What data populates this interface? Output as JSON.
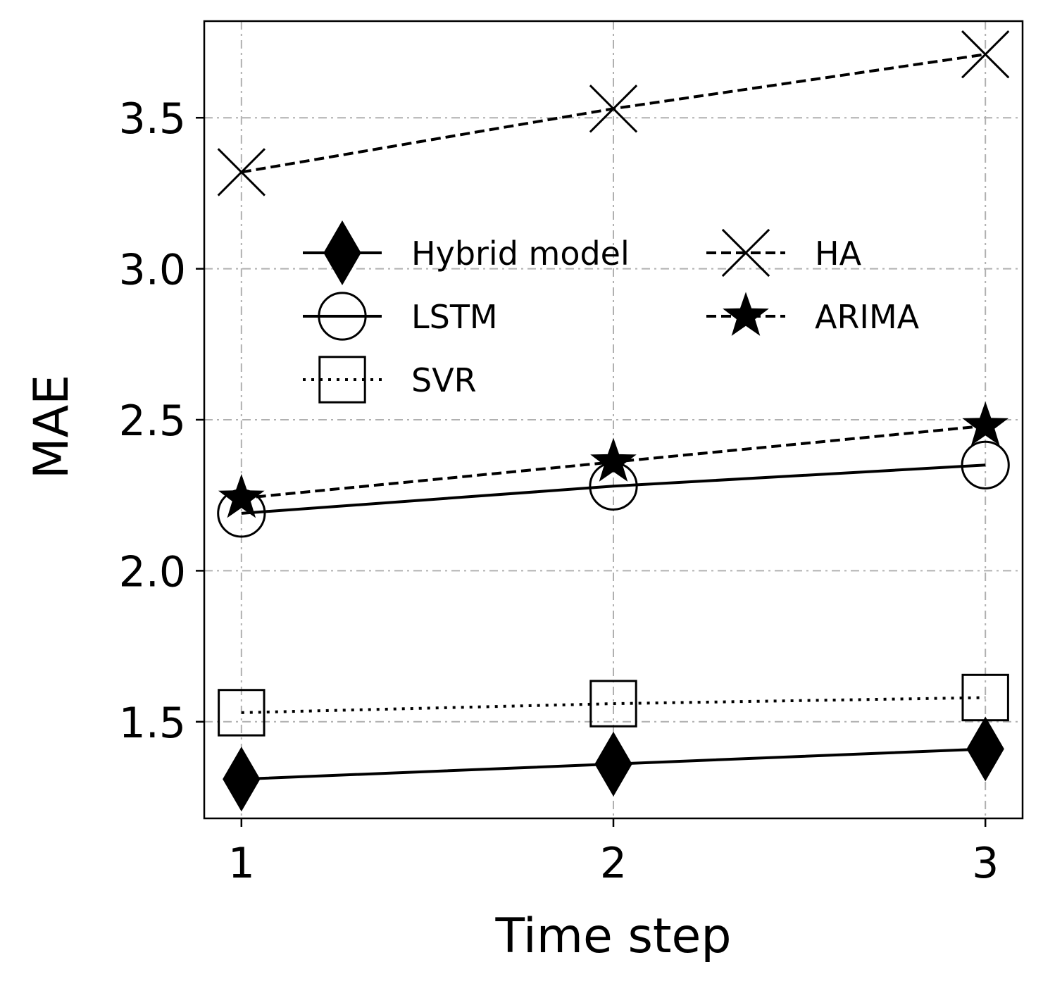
{
  "chart_data": {
    "type": "line",
    "xlabel": "Time step",
    "ylabel": "MAE",
    "x": [
      1,
      2,
      3
    ],
    "xticks": [
      "1",
      "2",
      "3"
    ],
    "xlim": [
      0.9,
      3.1
    ],
    "yticks": [
      "1.5",
      "2.0",
      "2.5",
      "3.0",
      "3.5"
    ],
    "ylim": [
      1.18,
      3.82
    ],
    "grid": true,
    "legend_position": "upper-center",
    "series": [
      {
        "name": "Hybrid model",
        "values": [
          1.31,
          1.36,
          1.41
        ],
        "marker": "diamond-filled",
        "line": "solid"
      },
      {
        "name": "LSTM",
        "values": [
          2.19,
          2.28,
          2.35
        ],
        "marker": "circle-open",
        "line": "solid"
      },
      {
        "name": "SVR",
        "values": [
          1.53,
          1.56,
          1.58
        ],
        "marker": "square-open",
        "line": "dotted"
      },
      {
        "name": "HA",
        "values": [
          3.32,
          3.53,
          3.71
        ],
        "marker": "x",
        "line": "dashed"
      },
      {
        "name": "ARIMA",
        "values": [
          2.24,
          2.36,
          2.48
        ],
        "marker": "star-filled",
        "line": "dashed"
      }
    ]
  }
}
